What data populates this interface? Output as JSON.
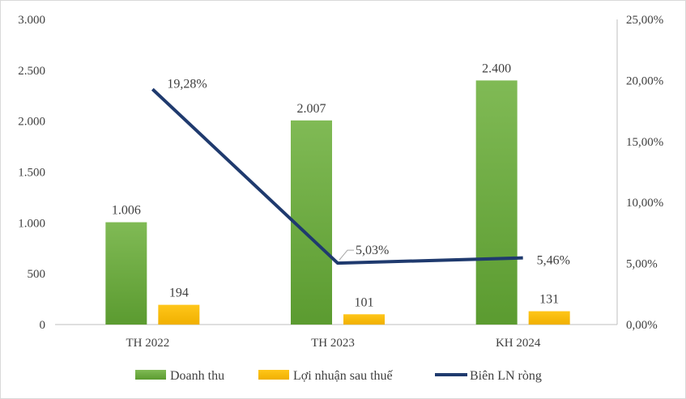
{
  "chart_data": {
    "type": "bar",
    "categories": [
      "TH 2022",
      "TH 2023",
      "KH 2024"
    ],
    "series": [
      {
        "name": "Doanh thu",
        "kind": "bar",
        "axis": "left",
        "values": [
          1006,
          2007,
          2400
        ],
        "labels": [
          "1.006",
          "2.007",
          "2.400"
        ],
        "color": "#6aaa3a"
      },
      {
        "name": "Lợi nhuận sau thuế",
        "kind": "bar",
        "axis": "left",
        "values": [
          194,
          101,
          131
        ],
        "labels": [
          "194",
          "101",
          "131"
        ],
        "color": "#ffc000"
      },
      {
        "name": "Biên LN ròng",
        "kind": "line",
        "axis": "right",
        "values": [
          19.28,
          5.03,
          5.46
        ],
        "labels": [
          "19,28%",
          "5,03%",
          "5,46%"
        ],
        "color": "#1f3a6e"
      }
    ],
    "left_axis": {
      "ylim": [
        0,
        3000
      ],
      "ticks": [
        0,
        500,
        1000,
        1500,
        2000,
        2500,
        3000
      ],
      "tick_labels": [
        "0",
        "500",
        "1.000",
        "1.500",
        "2.000",
        "2.500",
        "3.000"
      ]
    },
    "right_axis": {
      "ylim": [
        0,
        25
      ],
      "ticks": [
        0,
        5,
        10,
        15,
        20,
        25
      ],
      "tick_labels": [
        "0,00%",
        "5,00%",
        "10,00%",
        "15,00%",
        "20,00%",
        "25,00%"
      ]
    },
    "grid": false,
    "legend": "bottom"
  }
}
